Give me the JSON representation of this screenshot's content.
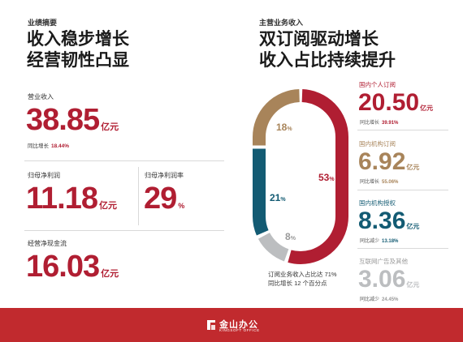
{
  "left": {
    "section_label": "业绩摘要",
    "headline": [
      "收入稳步增长",
      "经营韧性凸显"
    ],
    "revenue": {
      "label": "营业收入",
      "value": "38.85",
      "unit": "亿元",
      "sub_label": "同比增长",
      "sub_value": "18.44%"
    },
    "net_profit": {
      "label": "归母净利润",
      "value": "11.18",
      "unit": "亿元"
    },
    "net_margin": {
      "label": "归母净利润率",
      "value": "29",
      "unit": "%"
    },
    "cash_flow": {
      "label": "经营净现金流",
      "value": "16.03",
      "unit": "亿元"
    }
  },
  "right": {
    "section_label": "主营业务收入",
    "headline": [
      "双订阅驱动增长",
      "收入占比持续提升"
    ],
    "caption": [
      "订阅业务收入占比达 71%",
      "同比增长 12 个百分点"
    ]
  },
  "chart_data": {
    "type": "pie",
    "style": "ring",
    "unit": "%",
    "slices": [
      {
        "category": "国内个人订阅",
        "value": 53,
        "label": "53",
        "color": "#b01e32",
        "revenue": "20.50",
        "unit": "亿元",
        "change_label": "同比增长",
        "change_value": "39.91%"
      },
      {
        "category": "国内机构订阅",
        "value": 18,
        "label": "18",
        "color": "#a8845a",
        "revenue": "6.92",
        "unit": "亿元",
        "change_label": "同比增长",
        "change_value": "55.06%"
      },
      {
        "category": "国内机构授权",
        "value": 21,
        "label": "21",
        "color": "#135b73",
        "revenue": "8.36",
        "unit": "亿元",
        "change_label": "同比减少",
        "change_value": "13.18%"
      },
      {
        "category": "互联网广告及其他",
        "value": 8,
        "label": "8",
        "color": "#bcbec0",
        "revenue": "3.06",
        "unit": "亿元",
        "change_label": "同比减少",
        "change_value": "24.45%"
      }
    ]
  },
  "colors": {
    "accent_red": "#b01e32",
    "gold": "#a8845a",
    "teal": "#135b73",
    "gray": "#bcbec0",
    "footer_red": "#c12a2e"
  },
  "footer": {
    "logo_icon": "kingsoft-office-logo-icon",
    "brand_cn": "金山办公",
    "brand_en": "KINGSOFT OFFICE"
  }
}
